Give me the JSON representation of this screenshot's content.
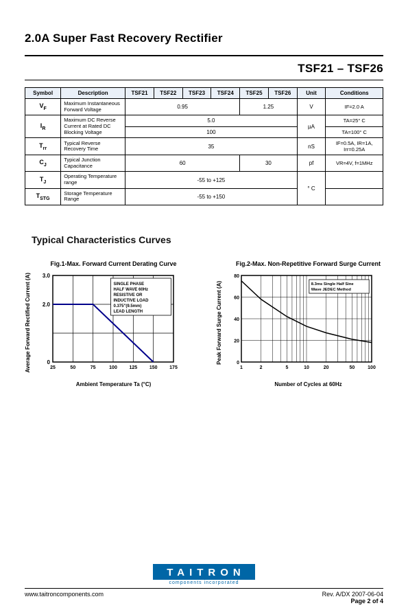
{
  "header": {
    "main_title": "2.0A Super Fast Recovery Rectifier",
    "part_range": "TSF21 – TSF26"
  },
  "table": {
    "headers": [
      "Symbol",
      "Description",
      "TSF21",
      "TSF22",
      "TSF23",
      "TSF24",
      "TSF25",
      "TSF26",
      "Unit",
      "Conditions"
    ],
    "col_widths": [
      "10%",
      "18%",
      "8%",
      "8%",
      "8%",
      "8%",
      "8%",
      "8%",
      "8%",
      "16%"
    ],
    "rows": [
      {
        "sym": "VF",
        "sym_sub": "F",
        "desc": "Maximum Instantaneous Forward Voltage",
        "spans": [
          {
            "c": 4,
            "v": "0.95"
          },
          {
            "c": 2,
            "v": "1.25"
          }
        ],
        "unit": "V",
        "cond": "IF=2.0 A"
      },
      {
        "sym": "IR",
        "sym_sub": "R",
        "desc": "Maximum DC Reverse Current at Rated DC Blocking Voltage",
        "rowspan": 2,
        "spans": [
          {
            "c": 6,
            "v": "5.0"
          }
        ],
        "unit": "µA",
        "unit_rowspan": 2,
        "cond": "TA=25° C"
      },
      {
        "cont": true,
        "spans": [
          {
            "c": 6,
            "v": "100"
          }
        ],
        "cond": "TA=100° C"
      },
      {
        "sym": "Trr",
        "sym_sub": "rr",
        "desc": "Typical Reverse Recovery Time",
        "spans": [
          {
            "c": 6,
            "v": "35"
          }
        ],
        "unit": "nS",
        "cond": "IF=0.5A, IR=1A, Irr=0.25A"
      },
      {
        "sym": "CJ",
        "sym_sub": "J",
        "desc": "Typical Junction Capacitance",
        "spans": [
          {
            "c": 4,
            "v": "60"
          },
          {
            "c": 2,
            "v": "30"
          }
        ],
        "unit": "pf",
        "cond": "VR=4V, f=1MHz"
      },
      {
        "sym": "TJ",
        "sym_sub": "J",
        "desc": "Operating Temperature range",
        "spans": [
          {
            "c": 6,
            "v": "-55 to +125"
          }
        ],
        "unit": "° C",
        "unit_rowspan": 2,
        "cond": ""
      },
      {
        "sym": "TSTG",
        "sym_sub": "STG",
        "desc": "Storage Temperature Range",
        "spans": [
          {
            "c": 6,
            "v": "-55 to +150"
          }
        ],
        "cond": ""
      }
    ]
  },
  "curves_title": "Typical Characteristics Curves",
  "chart1": {
    "title": "Fig.1-Max. Forward Current Derating Curve",
    "ylabel": "Average Forward Rectified Current (A)",
    "xlabel": "Ambient Temperature Ta (°C)",
    "xlim": [
      25,
      175
    ],
    "xticks": [
      25,
      50,
      75,
      100,
      125,
      150,
      175
    ],
    "ylim": [
      0,
      3.0
    ],
    "yticks": [
      "0",
      "2.0",
      "3.0"
    ],
    "line_color": "#00008b",
    "grid_color": "#000",
    "points": [
      [
        25,
        2.0
      ],
      [
        75,
        2.0
      ],
      [
        150,
        0
      ]
    ],
    "note": [
      "SINGLE PHASE",
      "HALF WAVE 60Hz",
      "RESISTIVE OR",
      "INDUCTIVE LOAD",
      "0.375\"(9.5mm)",
      "LEAD LENGTH"
    ]
  },
  "chart2": {
    "title": "Fig.2-Max. Non-Repetitive Forward Surge Current",
    "ylabel": "Peak Forward Surge Current (A)",
    "xlabel": "Number of Cycles at 60Hz",
    "xlim": [
      1,
      100
    ],
    "xticks": [
      "1",
      "2",
      "5",
      "10",
      "20",
      "50",
      "100"
    ],
    "ylim": [
      0,
      80
    ],
    "yticks": [
      "0",
      "20",
      "40",
      "60",
      "80"
    ],
    "line_color": "#000",
    "grid_color": "#000",
    "points": [
      [
        1,
        75
      ],
      [
        2,
        58
      ],
      [
        5,
        42
      ],
      [
        10,
        33
      ],
      [
        20,
        27
      ],
      [
        50,
        21
      ],
      [
        100,
        18
      ]
    ],
    "note": [
      "8.3ms Single Half Sine",
      "Wave JEDEC Method"
    ]
  },
  "footer": {
    "logo": "TAITRON",
    "logo_sub": "components incorporated",
    "url": "www.taitroncomponents.com",
    "rev": "Rev. A/DX 2007-06-04",
    "page": "Page 2 of 4"
  }
}
